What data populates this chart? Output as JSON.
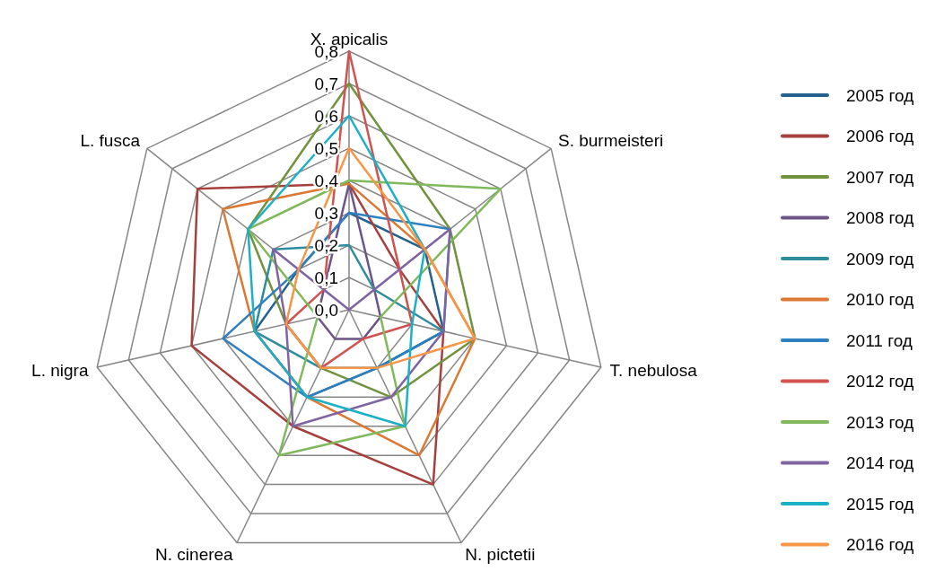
{
  "chart_data": {
    "type": "radar",
    "categories": [
      "X. apicalis",
      "S. burmeisteri",
      "T. nebulosa",
      "N. pictetii",
      "N. cinerea",
      "L. nigra",
      "L. fusca"
    ],
    "ylim": [
      0,
      0.8
    ],
    "yticks": [
      {
        "value": 0,
        "label": "0,0"
      },
      {
        "value": 0.1,
        "label": "0,1"
      },
      {
        "value": 0.2,
        "label": "0,2"
      },
      {
        "value": 0.3,
        "label": "0,3"
      },
      {
        "value": 0.4,
        "label": "0,4"
      },
      {
        "value": 0.5,
        "label": "0,5"
      },
      {
        "value": 0.6,
        "label": "0,6"
      },
      {
        "value": 0.7,
        "label": "0,7"
      },
      {
        "value": 0.8,
        "label": "0,8"
      }
    ],
    "grid": true,
    "legend": "right",
    "marker": "none",
    "line_style": "solid",
    "series": [
      {
        "name": "2005 год",
        "color": "#25618f",
        "values": [
          0.3,
          0.3,
          0.3,
          0.2,
          0.3,
          0.3,
          0.2
        ]
      },
      {
        "name": "2006 год",
        "color": "#a5403d",
        "values": [
          0.39,
          0.2,
          0.3,
          0.6,
          0.4,
          0.5,
          0.6
        ]
      },
      {
        "name": "2007 год",
        "color": "#71933e",
        "values": [
          0.7,
          0.4,
          0.4,
          0.3,
          0.2,
          0.2,
          0.4
        ]
      },
      {
        "name": "2008 год",
        "color": "#6d5587",
        "values": [
          0.39,
          0.1,
          0.1,
          0.1,
          0.1,
          0.1,
          0.1
        ]
      },
      {
        "name": "2009 год",
        "color": "#2f8c9f",
        "values": [
          0.2,
          0.1,
          0.3,
          0.2,
          0.2,
          0.3,
          0.3
        ]
      },
      {
        "name": "2010 год",
        "color": "#db7832",
        "values": [
          0.39,
          0.3,
          0.4,
          0.5,
          0.3,
          0.3,
          0.5
        ]
      },
      {
        "name": "2011 год",
        "color": "#2e7fbf",
        "values": [
          0.3,
          0.4,
          0.3,
          0.2,
          0.3,
          0.4,
          0.2
        ]
      },
      {
        "name": "2012 год",
        "color": "#d05350",
        "values": [
          0.8,
          0.2,
          0.2,
          0.1,
          0.2,
          0.2,
          0.1
        ]
      },
      {
        "name": "2013 год",
        "color": "#80b95b",
        "values": [
          0.4,
          0.6,
          0.1,
          0.4,
          0.5,
          0.1,
          0.4
        ]
      },
      {
        "name": "2014 год",
        "color": "#8064a2",
        "values": [
          0,
          0.4,
          0.3,
          0.3,
          0.4,
          0.2,
          0.3
        ]
      },
      {
        "name": "2015 год",
        "color": "#1ab0c6",
        "values": [
          0.6,
          0.3,
          0.2,
          0.4,
          0.3,
          0.3,
          0.4
        ]
      },
      {
        "name": "2016 год",
        "color": "#f79646",
        "values": [
          0.5,
          0.3,
          0.4,
          0.2,
          0.2,
          0.2,
          0.2
        ]
      }
    ]
  }
}
